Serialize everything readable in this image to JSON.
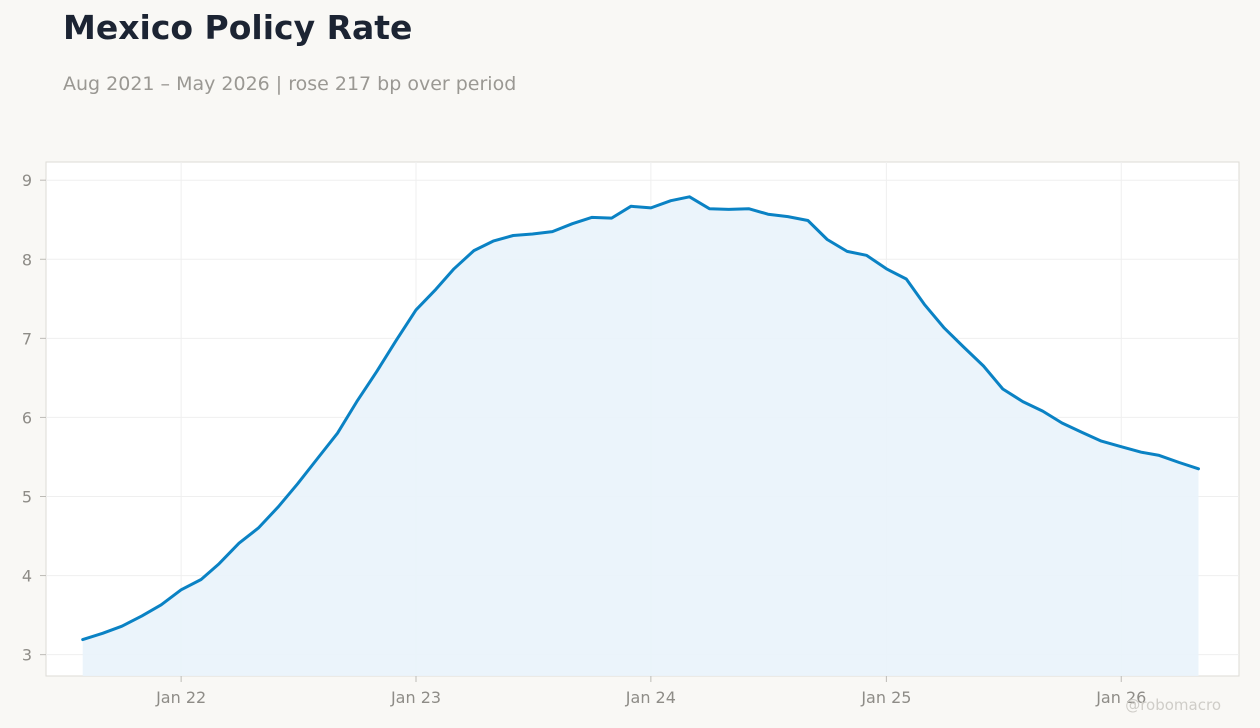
{
  "title": "Mexico Policy Rate",
  "subtitle": "Aug 2021 – May 2026 | rose 217 bp over period",
  "watermark": "@robomacro",
  "colors": {
    "line": "#0a82c4",
    "fill": "#e9f3fb",
    "grid": "#efefef",
    "frame": "#dddbd6"
  },
  "chart_data": {
    "type": "area",
    "title": "Mexico Policy Rate",
    "subtitle": "Aug 2021 – May 2026 | rose 217 bp over period",
    "xlabel": "",
    "ylabel": "",
    "ylim": [
      2.73,
      9.23
    ],
    "xlim": [
      "2021-06-05",
      "2026-07-03"
    ],
    "grid": true,
    "legend": "none",
    "x_ticks": [
      {
        "date": "2022-01-01",
        "label": "Jan 22"
      },
      {
        "date": "2023-01-01",
        "label": "Jan 23"
      },
      {
        "date": "2024-01-01",
        "label": "Jan 24"
      },
      {
        "date": "2025-01-01",
        "label": "Jan 25"
      },
      {
        "date": "2026-01-01",
        "label": "Jan 26"
      }
    ],
    "y_ticks": [
      3,
      4,
      5,
      6,
      7,
      8,
      9
    ],
    "series": [
      {
        "x": [
          "2021-08-01",
          "2021-09-01",
          "2021-10-01",
          "2021-11-01",
          "2021-12-01",
          "2022-01-01",
          "2022-02-01",
          "2022-03-01",
          "2022-04-01",
          "2022-05-01",
          "2022-06-01",
          "2022-07-01",
          "2022-08-01",
          "2022-09-01",
          "2022-10-01",
          "2022-11-01",
          "2022-12-01",
          "2023-01-01",
          "2023-02-01",
          "2023-03-01",
          "2023-04-01",
          "2023-05-01",
          "2023-06-01",
          "2023-07-01",
          "2023-08-01",
          "2023-09-01",
          "2023-10-01",
          "2023-11-01",
          "2023-12-01",
          "2024-01-01",
          "2024-02-01",
          "2024-03-01",
          "2024-04-01",
          "2024-05-01",
          "2024-06-01",
          "2024-07-01",
          "2024-08-01",
          "2024-09-01",
          "2024-10-01",
          "2024-11-01",
          "2024-12-01",
          "2025-01-01",
          "2025-02-01",
          "2025-03-01",
          "2025-04-01",
          "2025-05-01",
          "2025-06-01",
          "2025-07-01",
          "2025-08-01",
          "2025-09-01",
          "2025-10-01",
          "2025-11-01",
          "2025-12-01",
          "2026-01-01",
          "2026-02-01",
          "2026-03-01",
          "2026-04-01",
          "2026-05-01"
        ],
        "values": [
          3.19,
          3.27,
          3.36,
          3.49,
          3.63,
          3.82,
          3.95,
          4.15,
          4.41,
          4.6,
          4.87,
          5.16,
          5.48,
          5.8,
          6.2,
          6.58,
          6.97,
          7.36,
          7.62,
          7.88,
          8.11,
          8.23,
          8.3,
          8.32,
          8.35,
          8.45,
          8.53,
          8.52,
          8.67,
          8.65,
          8.74,
          8.79,
          8.64,
          8.63,
          8.64,
          8.57,
          8.54,
          8.49,
          8.25,
          8.1,
          8.05,
          7.88,
          7.75,
          7.43,
          7.13,
          6.89,
          6.65,
          6.36,
          6.2,
          6.08,
          5.93,
          5.81,
          5.7,
          5.63,
          5.56,
          5.52,
          5.43,
          5.35
        ]
      }
    ]
  }
}
